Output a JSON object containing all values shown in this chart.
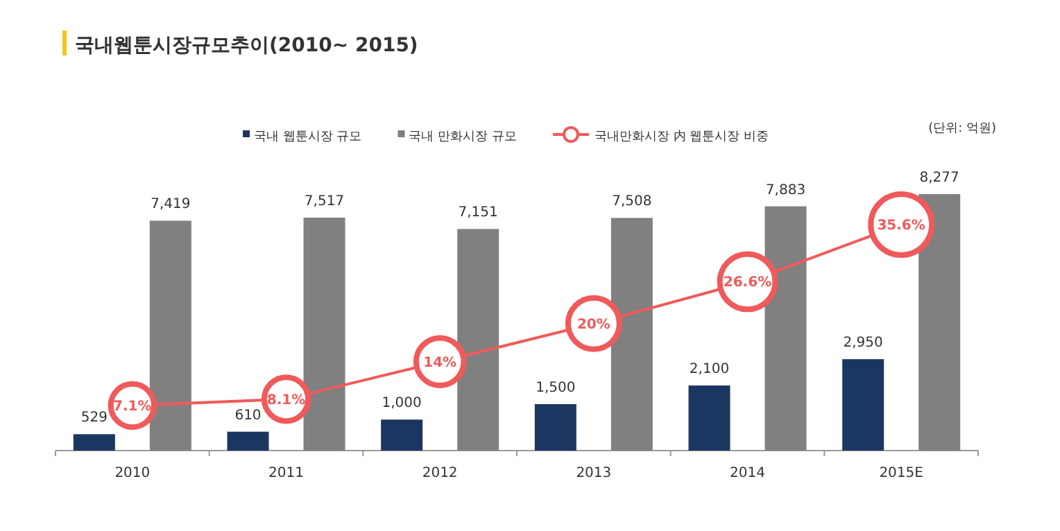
{
  "chart_data": {
    "type": "bar",
    "title": "국내웹툰시장규모추이(2010~ 2015)",
    "categories": [
      "2010",
      "2011",
      "2012",
      "2013",
      "2014",
      "2015E"
    ],
    "series": [
      {
        "name": "국내 웹툰시장 규모",
        "color": "#1b3660",
        "values": [
          529,
          610,
          1000,
          1500,
          2100,
          2950
        ],
        "value_labels": [
          "529",
          "610",
          "1,000",
          "1,500",
          "2,100",
          "2,950"
        ]
      },
      {
        "name": "국내 만화시장 규모",
        "color": "#808080",
        "values": [
          7419,
          7517,
          7151,
          7508,
          7883,
          8277
        ],
        "value_labels": [
          "7,419",
          "7,517",
          "7,151",
          "7,508",
          "7,883",
          "8,277"
        ]
      },
      {
        "name": "국내만화시장 内 웹툰시장 비중",
        "type": "line",
        "axis": "y2",
        "color": "#f05a5b",
        "marker": "circle",
        "values": [
          7.1,
          8.1,
          14,
          20,
          26.6,
          35.6
        ],
        "value_labels": [
          "7.1%",
          "8.1%",
          "14%",
          "20%",
          "26.6%",
          "35.6%"
        ]
      }
    ],
    "legend": "top",
    "annotations": [
      "(단위: 억원)"
    ]
  }
}
